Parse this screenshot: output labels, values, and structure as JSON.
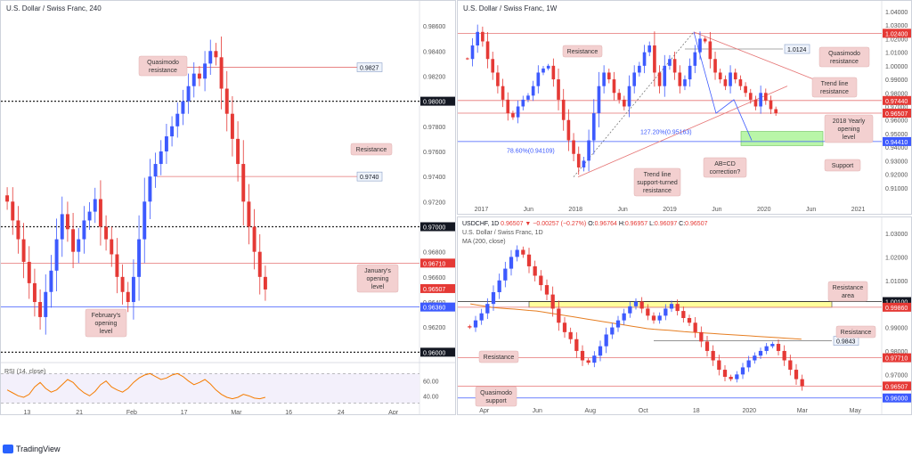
{
  "colors": {
    "candle_up": "#3d5afe",
    "candle_down": "#e53935",
    "hline_red": "#e57373",
    "hline_blue": "#3d5afe",
    "dotted": "#222222",
    "rsi": "#f57c00",
    "ma": "#e67e22",
    "green_zone": "#b9f6a8",
    "yellow_zone": "#ffff9c",
    "annotation_bg": "#f3d0d0",
    "price_tag_red": "#e53935",
    "price_tag_black": "#131722",
    "price_tag_blue": "#3d5afe"
  },
  "footer": {
    "logo_label": "TradingView",
    "logo_icon": "tradingview-logo-icon"
  },
  "chart_data": [
    {
      "panel": "h4",
      "type": "candlestick",
      "title": "U.S. Dollar / Swiss Franc, 240",
      "ylim": [
        0.9596,
        0.987
      ],
      "y_ticks": [
        "0.98600",
        "0.98400",
        "0.98200",
        "0.98000",
        "0.97800",
        "0.97600",
        "0.97400",
        "0.97200",
        "0.97000",
        "0.96800",
        "0.96600",
        "0.96400",
        "0.96200",
        "0.96000"
      ],
      "x_ticks": [
        "13",
        "21",
        "Feb",
        "17",
        "Mar",
        "16",
        "24",
        "Apr"
      ],
      "closes": [
        0.972,
        0.9705,
        0.969,
        0.9672,
        0.9655,
        0.964,
        0.9628,
        0.9648,
        0.9665,
        0.969,
        0.971,
        0.9698,
        0.968,
        0.969,
        0.9705,
        0.9712,
        0.9722,
        0.97,
        0.969,
        0.9678,
        0.966,
        0.9648,
        0.964,
        0.966,
        0.969,
        0.972,
        0.974,
        0.975,
        0.976,
        0.9772,
        0.978,
        0.979,
        0.98,
        0.9812,
        0.9822,
        0.9818,
        0.983,
        0.984,
        0.9835,
        0.981,
        0.979,
        0.977,
        0.975,
        0.972,
        0.97,
        0.968,
        0.966,
        0.965
      ],
      "price_labels": [
        {
          "text": "0.98000",
          "value": 0.98,
          "style": "black"
        },
        {
          "text": "0.97000",
          "value": 0.97,
          "style": "black"
        },
        {
          "text": "0.96710",
          "value": 0.9671,
          "style": "red"
        },
        {
          "text": "0.96507",
          "value": 0.96507,
          "style": "red"
        },
        {
          "text": "0.96360",
          "value": 0.9636,
          "style": "blue"
        },
        {
          "text": "0.96000",
          "value": 0.96,
          "style": "black"
        }
      ],
      "level_labels": [
        {
          "text": "0.9827",
          "value": 0.9827
        },
        {
          "text": "0.9740",
          "value": 0.974
        }
      ],
      "annotations": [
        "Quasimodo resistance",
        "Resistance",
        "January's opening level",
        "February's opening level"
      ],
      "rsi": {
        "label": "RSI (14, close)",
        "y_ticks": [
          "60.00",
          "40.00"
        ],
        "values": [
          48,
          44,
          40,
          38,
          42,
          52,
          58,
          50,
          45,
          48,
          55,
          62,
          58,
          50,
          44,
          40,
          46,
          55,
          60,
          52,
          48,
          45,
          50,
          58,
          64,
          68,
          70,
          66,
          62,
          64,
          68,
          70,
          66,
          60,
          55,
          58,
          62,
          56,
          48,
          42,
          38,
          36,
          38,
          42,
          40,
          37,
          36,
          38
        ]
      }
    },
    {
      "panel": "weekly",
      "type": "candlestick",
      "title": "U.S. Dollar / Swiss Franc, 1W",
      "ylim": [
        0.9,
        1.04
      ],
      "y_ticks": [
        "1.04000",
        "1.03000",
        "1.02000",
        "1.01000",
        "1.00000",
        "0.99000",
        "0.98000",
        "0.97000",
        "0.96000",
        "0.95000",
        "0.94000",
        "0.93000",
        "0.92000",
        "0.91000"
      ],
      "x_ticks": [
        "2017",
        "Jun",
        "2018",
        "Jun",
        "2019",
        "Jun",
        "2020",
        "Jun",
        "2021"
      ],
      "closes": [
        1.005,
        1.015,
        1.025,
        1.018,
        1.005,
        0.995,
        0.985,
        0.975,
        0.965,
        0.962,
        0.97,
        0.975,
        0.978,
        0.985,
        0.995,
        0.998,
        1.0,
        0.99,
        0.975,
        0.96,
        0.945,
        0.935,
        0.925,
        0.93,
        0.945,
        0.965,
        0.985,
        0.995,
        0.99,
        0.98,
        0.975,
        0.97,
        0.985,
        0.995,
        1.0,
        1.01,
        1.015,
        0.995,
        0.985,
        1.0,
        1.005,
        0.995,
        0.985,
        0.99,
        1.0,
        1.01,
        1.02,
        1.018,
        1.005,
        0.995,
        0.99,
        0.985,
        0.995,
        0.99,
        0.985,
        0.98,
        0.975,
        0.97,
        0.98,
        0.9744,
        0.968,
        0.965
      ],
      "price_labels": [
        {
          "text": "1.02400",
          "value": 1.024,
          "style": "red"
        },
        {
          "text": "0.97440",
          "value": 0.9744,
          "style": "red"
        },
        {
          "text": "0.96507",
          "value": 0.96507,
          "style": "red"
        },
        {
          "text": "0.94410",
          "value": 0.9441,
          "style": "blue"
        }
      ],
      "level_labels": [
        {
          "text": "1.0124",
          "value": 1.0124
        }
      ],
      "fib_labels": [
        "127.20%(0.95163)",
        "78.60%(0.94109)"
      ],
      "annotations": [
        "Resistance",
        "Quasimodo resistance",
        "Trend line resistance",
        "2018 Yearly opening level",
        "Support",
        "AB=CD correction?",
        "Trend line support-turned resistance"
      ]
    },
    {
      "panel": "daily",
      "type": "candlestick",
      "title": "U.S. Dollar / Swiss Franc, 1D",
      "ohlc_line": {
        "symbol": "USDCHF, 1D",
        "close": "0.96507",
        "change": "−0.00257 (−0.27%)",
        "o_label": "O:",
        "o": "0.96764",
        "h_label": "H:",
        "h": "0.96957",
        "l_label": "L:",
        "l": "0.96097",
        "c_label": "C:",
        "c": "0.96507"
      },
      "ma_label": "MA (200, close)",
      "ylim": [
        0.958,
        1.03
      ],
      "y_ticks": [
        "1.03000",
        "1.02000",
        "1.01000",
        "1.00000",
        "0.99000",
        "0.98000",
        "0.97000",
        "0.96000"
      ],
      "x_ticks": [
        "Apr",
        "Jun",
        "Aug",
        "Oct",
        "18",
        "2020",
        "Mar",
        "May"
      ],
      "closes": [
        0.99,
        0.993,
        0.996,
        1.0,
        1.005,
        1.01,
        1.015,
        1.02,
        1.023,
        1.021,
        1.016,
        1.012,
        1.008,
        1.004,
        0.998,
        0.992,
        0.988,
        0.985,
        0.98,
        0.976,
        0.975,
        0.978,
        0.982,
        0.987,
        0.99,
        0.993,
        0.996,
        0.999,
        1.001,
        0.998,
        0.995,
        0.993,
        0.995,
        0.998,
        1.0,
        0.997,
        0.994,
        0.992,
        0.988,
        0.984,
        0.98,
        0.976,
        0.972,
        0.969,
        0.968,
        0.97,
        0.973,
        0.976,
        0.978,
        0.98,
        0.982,
        0.983,
        0.98,
        0.976,
        0.972,
        0.968,
        0.965
      ],
      "ma": [
        1.0,
        0.9995,
        0.999,
        0.9985,
        0.9982,
        0.998,
        0.9978,
        0.9975,
        0.9972,
        0.997,
        0.9965,
        0.996,
        0.9955,
        0.995,
        0.9945,
        0.994,
        0.9935,
        0.993,
        0.9925,
        0.992,
        0.9915,
        0.991,
        0.9905,
        0.99,
        0.9895,
        0.9892,
        0.989,
        0.9888,
        0.9885,
        0.9882,
        0.988,
        0.9878,
        0.9876,
        0.9874,
        0.9872,
        0.987,
        0.9868,
        0.9866,
        0.9864,
        0.9862,
        0.986,
        0.9858,
        0.9856,
        0.9854,
        0.9852,
        0.985
      ],
      "price_labels": [
        {
          "text": "1.00100",
          "value": 1.001,
          "style": "black"
        },
        {
          "text": "0.99860",
          "value": 0.9986,
          "style": "red"
        },
        {
          "text": "0.97710",
          "value": 0.9771,
          "style": "red"
        },
        {
          "text": "0.96507",
          "value": 0.96507,
          "style": "red"
        },
        {
          "text": "0.96000",
          "value": 0.96,
          "style": "blue"
        }
      ],
      "level_labels": [
        {
          "text": "0.9843",
          "value": 0.9843
        }
      ],
      "annotations": [
        "Resistance area",
        "Resistance",
        "Resistance",
        "Quasimodo support"
      ]
    }
  ]
}
